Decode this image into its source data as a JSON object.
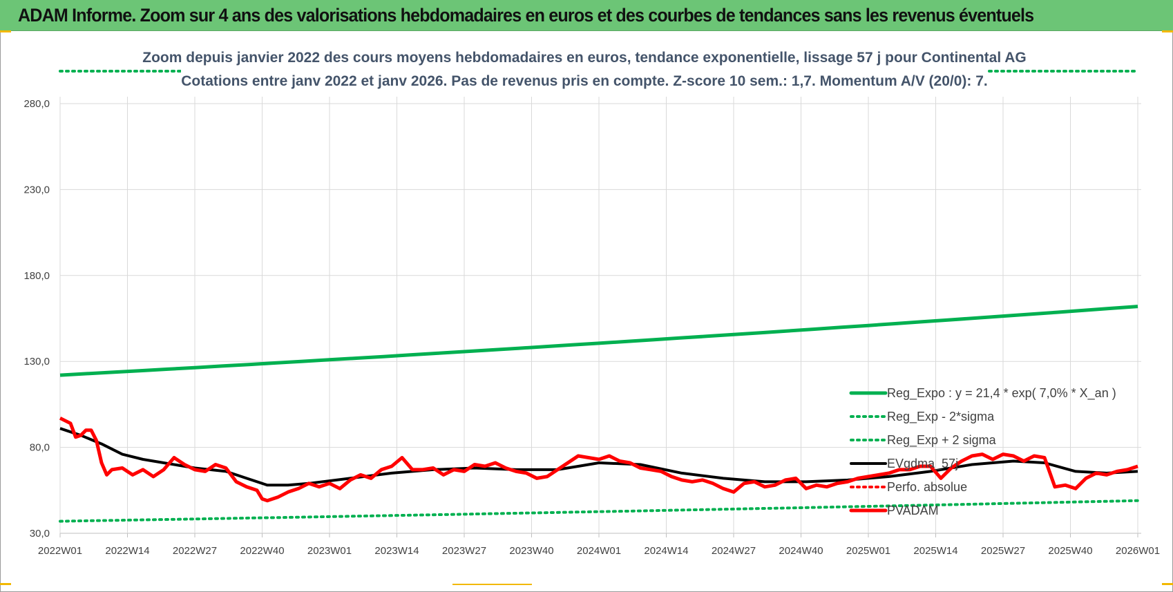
{
  "header": {
    "title": "ADAM Informe. Zoom sur 4 ans des valorisations hebdomadaires en euros et des courbes de tendances sans les revenus éventuels"
  },
  "colors": {
    "header_bg": "#6cc576",
    "trend": "#00b050",
    "price": "#ff0000",
    "smooth": "#000000",
    "grid": "#d9d9d9"
  },
  "chart_data": {
    "type": "line",
    "title_line1": "Zoom depuis janvier 2022 des cours moyens hebdomadaires en euros, tendance exponentielle, lissage 57 j pour Continental AG",
    "title_line2": "Cotations entre janv 2022 et janv 2026. Pas de revenus pris en compte. Z-score 10 sem.: 1,7. Momentum A/V (20/0): 7.",
    "ylim": [
      30,
      280
    ],
    "yticks": [
      "30,0",
      "80,0",
      "130,0",
      "180,0",
      "230,0",
      "280,0"
    ],
    "ytick_values": [
      30,
      80,
      130,
      180,
      230,
      280
    ],
    "xticks": [
      "2022W01",
      "2022W14",
      "2022W27",
      "2022W40",
      "2023W01",
      "2023W14",
      "2023W27",
      "2023W40",
      "2024W01",
      "2024W14",
      "2024W27",
      "2024W40",
      "2025W01",
      "2025W14",
      "2025W27",
      "2025W40",
      "2026W01"
    ],
    "x_range_weeks": [
      0,
      208
    ],
    "legend": [
      {
        "label": "Reg_Expo : y = 21,4 * exp( 7,0% *  X_an )",
        "style": "solid-green"
      },
      {
        "label": "Reg_Exp - 2*sigma",
        "style": "dotted-green"
      },
      {
        "label": "Reg_Exp + 2 sigma",
        "style": "dotted-green"
      },
      {
        "label": "EVgdma_57j",
        "style": "solid-black"
      },
      {
        "label": "Perfo. absolue",
        "style": "dotted-red"
      },
      {
        "label": "PVADAM",
        "style": "solid-red"
      }
    ],
    "series": [
      {
        "name": "Reg_Expo",
        "x": [
          0,
          208
        ],
        "values": [
          122,
          162
        ],
        "growth": "exponential"
      },
      {
        "name": "Reg_Exp - 2*sigma",
        "x": [
          0,
          208
        ],
        "values": [
          37,
          49
        ],
        "growth": "exponential"
      },
      {
        "name": "Reg_Exp + 2 sigma",
        "x": [
          0,
          208
        ],
        "values": [
          300,
          300
        ],
        "note": "runs above the plot area"
      },
      {
        "name": "EVgdma_57j",
        "x": [
          0,
          4,
          8,
          12,
          16,
          20,
          26,
          32,
          36,
          40,
          44,
          48,
          56,
          64,
          72,
          80,
          88,
          96,
          100,
          104,
          112,
          120,
          128,
          136,
          144,
          152,
          160,
          168,
          176,
          184,
          190,
          196,
          202,
          208
        ],
        "values": [
          91,
          87,
          82,
          76,
          73,
          71,
          68,
          66,
          62,
          58,
          58,
          59,
          62,
          65,
          67,
          68,
          67,
          67,
          69,
          71,
          70,
          65,
          62,
          60,
          60,
          61,
          63,
          66,
          70,
          72,
          71,
          66,
          65,
          66
        ]
      },
      {
        "name": "PVADAM",
        "x": [
          0,
          2,
          3,
          4,
          5,
          6,
          7,
          8,
          9,
          10,
          12,
          14,
          16,
          18,
          20,
          22,
          24,
          26,
          28,
          30,
          32,
          34,
          36,
          38,
          39,
          40,
          42,
          44,
          46,
          48,
          50,
          52,
          54,
          56,
          58,
          60,
          62,
          64,
          66,
          68,
          70,
          72,
          74,
          76,
          78,
          80,
          82,
          84,
          86,
          88,
          90,
          92,
          94,
          96,
          98,
          100,
          102,
          104,
          106,
          108,
          110,
          112,
          114,
          116,
          118,
          120,
          122,
          124,
          126,
          128,
          130,
          132,
          134,
          136,
          138,
          140,
          142,
          144,
          146,
          148,
          150,
          152,
          154,
          156,
          158,
          160,
          162,
          164,
          166,
          168,
          170,
          172,
          174,
          176,
          178,
          180,
          182,
          184,
          186,
          188,
          190,
          192,
          194,
          196,
          198,
          200,
          202,
          204,
          206,
          208
        ],
        "values": [
          97,
          94,
          86,
          87,
          90,
          90,
          84,
          71,
          64,
          67,
          68,
          64,
          67,
          63,
          67,
          74,
          70,
          67,
          66,
          70,
          68,
          60,
          57,
          55,
          50,
          49,
          51,
          54,
          56,
          59,
          57,
          59,
          56,
          61,
          64,
          62,
          67,
          69,
          74,
          67,
          67,
          68,
          64,
          67,
          66,
          70,
          69,
          71,
          68,
          66,
          65,
          62,
          63,
          67,
          71,
          75,
          74,
          73,
          75,
          72,
          71,
          68,
          67,
          66,
          63,
          61,
          60,
          61,
          59,
          56,
          54,
          59,
          60,
          57,
          58,
          61,
          62,
          56,
          58,
          57,
          59,
          60,
          62,
          63,
          64,
          65,
          67,
          67,
          69,
          69,
          62,
          68,
          72,
          75,
          76,
          73,
          76,
          75,
          72,
          75,
          74,
          57,
          58,
          56,
          62,
          65,
          64,
          66,
          67,
          69
        ]
      }
    ]
  }
}
